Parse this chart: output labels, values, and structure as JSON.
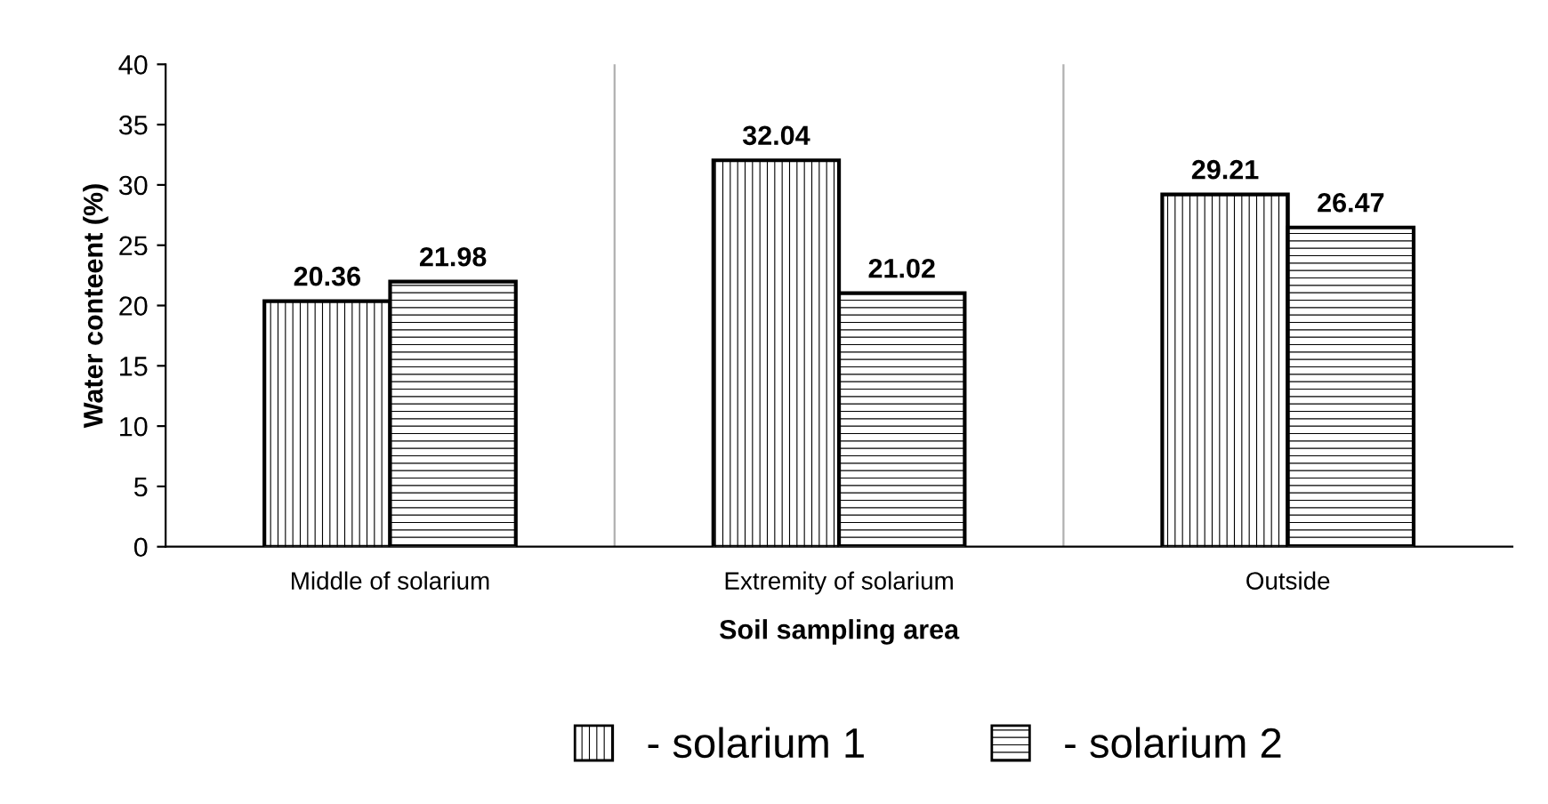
{
  "chart_data": {
    "type": "bar",
    "xlabel": "Soil sampling area",
    "ylabel": "Water conteent (%)",
    "categories": [
      "Middle of solarium",
      "Extremity of solarium",
      "Outside"
    ],
    "series": [
      {
        "name": "- solarium 1",
        "color": "#000000",
        "values": [
          20.36,
          32.04,
          29.21
        ]
      },
      {
        "name": "- solarium 2",
        "color": "#000000",
        "values": [
          21.98,
          21.02,
          26.47
        ]
      }
    ],
    "ylim": [
      0,
      40
    ],
    "yticks": [
      0,
      5,
      10,
      15,
      20,
      25,
      30,
      35,
      40
    ],
    "grid": "x",
    "legend": "bottom",
    "data_labels": true
  }
}
